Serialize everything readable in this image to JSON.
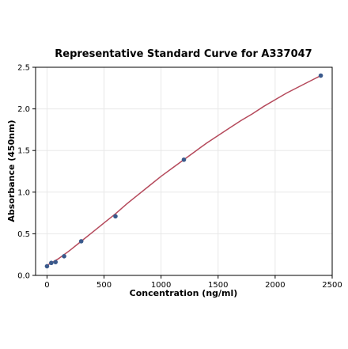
{
  "chart_data": {
    "type": "scatter",
    "title": "Representative Standard Curve for A337047",
    "xlabel": "Concentration (ng/ml)",
    "ylabel": "Absorbance (450nm)",
    "xlim": [
      -100,
      2500
    ],
    "ylim": [
      0,
      2.5
    ],
    "xticks": [
      0,
      500,
      1000,
      1500,
      2000,
      2500
    ],
    "yticks": [
      0.0,
      0.5,
      1.0,
      1.5,
      2.0,
      2.5
    ],
    "xtick_labels": [
      "0",
      "500",
      "1000",
      "1500",
      "2000",
      "2500"
    ],
    "ytick_labels": [
      "0.0",
      "0.5",
      "1.0",
      "1.5",
      "2.0",
      "2.5"
    ],
    "grid": true,
    "points": {
      "x": [
        0,
        37.5,
        75,
        150,
        300,
        600,
        1200,
        2400
      ],
      "y": [
        0.11,
        0.15,
        0.16,
        0.23,
        0.41,
        0.71,
        1.39,
        2.4
      ]
    },
    "fit_curve": {
      "x": [
        0,
        100,
        200,
        300,
        400,
        500,
        600,
        700,
        800,
        900,
        1000,
        1100,
        1200,
        1300,
        1400,
        1500,
        1600,
        1700,
        1800,
        1900,
        2000,
        2100,
        2200,
        2300,
        2400
      ],
      "y": [
        0.12,
        0.2,
        0.3,
        0.41,
        0.52,
        0.63,
        0.74,
        0.86,
        0.97,
        1.08,
        1.19,
        1.29,
        1.39,
        1.49,
        1.59,
        1.68,
        1.77,
        1.86,
        1.94,
        2.03,
        2.11,
        2.19,
        2.26,
        2.33,
        2.4
      ]
    },
    "colors": {
      "points": "#3a5a8c",
      "curve": "#b5495b",
      "grid": "#e8e8e8",
      "axes": "#000000"
    }
  }
}
